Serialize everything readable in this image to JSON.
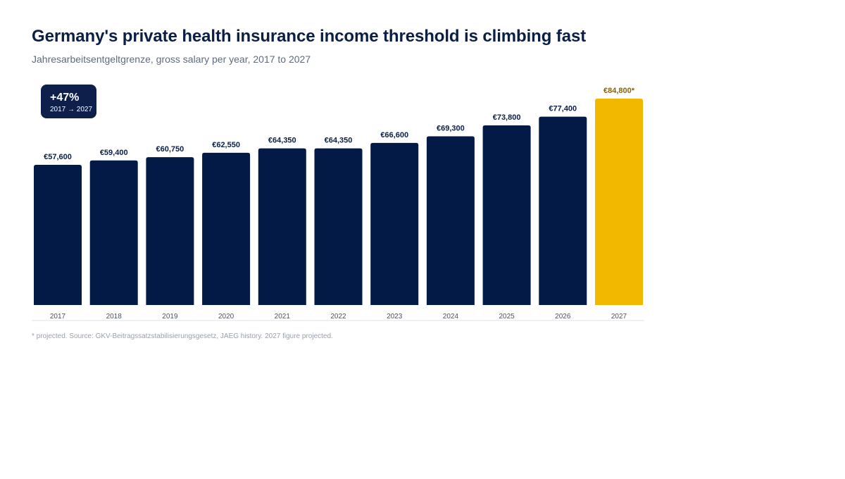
{
  "title": "Germany's private health insurance income threshold is climbing fast",
  "subtitle": "Jahresarbeitsentgeltgrenze, gross salary per year, 2017 to 2027",
  "badge": {
    "main": "+47%",
    "sub": "2017 → 2027"
  },
  "footnote": "* projected. Source: GKV-Beitragssatzstabilisierungsgesetz, JAEG history. 2027 figure projected.",
  "colors": {
    "bar": "#021a45",
    "highlight": "#f2b800",
    "highlight_label": "#8a6400",
    "label": "#0b1f45",
    "axis": "#dde1e6"
  },
  "chart_data": {
    "type": "bar",
    "categories": [
      "2017",
      "2018",
      "2019",
      "2020",
      "2021",
      "2022",
      "2023",
      "2024",
      "2025",
      "2026",
      "2027"
    ],
    "values": [
      57600,
      59400,
      60750,
      62550,
      64350,
      64350,
      66600,
      69300,
      73800,
      77400,
      84800
    ],
    "value_labels": [
      "€57,600",
      "€59,400",
      "€60,750",
      "€62,550",
      "€64,350",
      "€64,350",
      "€66,600",
      "€69,300",
      "€73,800",
      "€77,400",
      "€84,800*"
    ],
    "highlight_category": "2027",
    "ylim": [
      0,
      84800
    ],
    "grid": false,
    "title": "Germany's private health insurance income threshold is climbing fast",
    "xlabel": "",
    "ylabel": ""
  }
}
